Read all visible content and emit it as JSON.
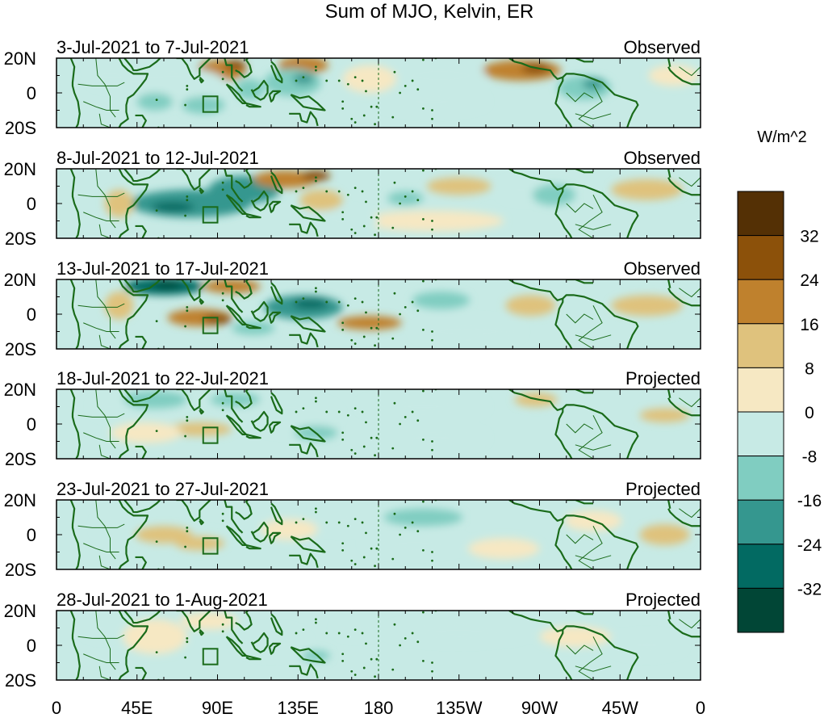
{
  "chart_data": {
    "type": "heatmap",
    "title": "Sum of MJO, Kelvin, ER",
    "colorbar": {
      "label": "W/m^2",
      "tick_labels": [
        "32",
        "24",
        "16",
        "8",
        "0",
        "-8",
        "-16",
        "-24",
        "-32"
      ],
      "levels": [
        {
          "range": [
            "",
            "-32"
          ],
          "color": "#014636"
        },
        {
          "range": [
            "-32",
            "-24"
          ],
          "color": "#026a62"
        },
        {
          "range": [
            "-24",
            "-16"
          ],
          "color": "#35978f"
        },
        {
          "range": [
            "-16",
            "-8"
          ],
          "color": "#80cdc1"
        },
        {
          "range": [
            "-8",
            "0"
          ],
          "color": "#c7eae5"
        },
        {
          "range": [
            "0",
            "8"
          ],
          "color": "#f6e8c3"
        },
        {
          "range": [
            "8",
            "16"
          ],
          "color": "#dfc27d"
        },
        {
          "range": [
            "16",
            "24"
          ],
          "color": "#bf812d"
        },
        {
          "range": [
            "24",
            "32"
          ],
          "color": "#8c510a"
        },
        {
          "range": [
            "32",
            ""
          ],
          "color": "#543005"
        }
      ]
    },
    "x_tick_labels": [
      "0",
      "45E",
      "90E",
      "135E",
      "180",
      "135W",
      "90W",
      "45W",
      "0"
    ],
    "y_tick_labels": [
      "20N",
      "0",
      "20S"
    ],
    "xlim": [
      0,
      360
    ],
    "ylim": [
      -20,
      20
    ],
    "dateline_lon": 180,
    "panels": [
      {
        "period": "3-Jul-2021 to 7-Jul-2021",
        "status": "Observed",
        "blobs": [
          {
            "lon": 92,
            "lat": 13,
            "value": 18,
            "rx": 14,
            "ry": 6
          },
          {
            "lon": 100,
            "lat": 16,
            "value": 26,
            "rx": 6,
            "ry": 3
          },
          {
            "lon": 138,
            "lat": 16,
            "value": 18,
            "rx": 14,
            "ry": 5
          },
          {
            "lon": 132,
            "lat": 6,
            "value": -16,
            "rx": 16,
            "ry": 8
          },
          {
            "lon": 138,
            "lat": 8,
            "value": -24,
            "rx": 6,
            "ry": 3
          },
          {
            "lon": 108,
            "lat": 2,
            "value": -16,
            "rx": 8,
            "ry": 6
          },
          {
            "lon": 65,
            "lat": 5,
            "value": -8,
            "rx": 30,
            "ry": 10
          },
          {
            "lon": 55,
            "lat": -5,
            "value": -16,
            "rx": 10,
            "ry": 5
          },
          {
            "lon": 82,
            "lat": -7,
            "value": -16,
            "rx": 12,
            "ry": 5
          },
          {
            "lon": 260,
            "lat": 13,
            "value": 22,
            "rx": 22,
            "ry": 6
          },
          {
            "lon": 268,
            "lat": 14,
            "value": 30,
            "rx": 8,
            "ry": 3
          },
          {
            "lon": 295,
            "lat": 3,
            "value": -16,
            "rx": 15,
            "ry": 7
          },
          {
            "lon": 300,
            "lat": 5,
            "value": -24,
            "rx": 6,
            "ry": 3
          },
          {
            "lon": 175,
            "lat": 8,
            "value": 6,
            "rx": 15,
            "ry": 8
          },
          {
            "lon": 215,
            "lat": 10,
            "value": -8,
            "rx": 25,
            "ry": 8
          },
          {
            "lon": 210,
            "lat": -5,
            "value": -8,
            "rx": 30,
            "ry": 6
          },
          {
            "lon": 345,
            "lat": 10,
            "value": 6,
            "rx": 14,
            "ry": 6
          },
          {
            "lon": 30,
            "lat": 10,
            "value": -6,
            "rx": 12,
            "ry": 7
          }
        ]
      },
      {
        "period": "8-Jul-2021 to 12-Jul-2021",
        "status": "Observed",
        "blobs": [
          {
            "lon": 75,
            "lat": 0,
            "value": -24,
            "rx": 34,
            "ry": 8
          },
          {
            "lon": 65,
            "lat": -2,
            "value": -30,
            "rx": 12,
            "ry": 3
          },
          {
            "lon": 105,
            "lat": 8,
            "value": -18,
            "rx": 20,
            "ry": 8
          },
          {
            "lon": 128,
            "lat": 14,
            "value": 20,
            "rx": 18,
            "ry": 5
          },
          {
            "lon": 145,
            "lat": 16,
            "value": 28,
            "rx": 8,
            "ry": 3
          },
          {
            "lon": 148,
            "lat": 2,
            "value": 8,
            "rx": 12,
            "ry": 6
          },
          {
            "lon": 35,
            "lat": 0,
            "value": 12,
            "rx": 8,
            "ry": 8
          },
          {
            "lon": 195,
            "lat": 3,
            "value": -10,
            "rx": 10,
            "ry": 4
          },
          {
            "lon": 225,
            "lat": 10,
            "value": 10,
            "rx": 18,
            "ry": 5
          },
          {
            "lon": 260,
            "lat": 8,
            "value": -8,
            "rx": 12,
            "ry": 6
          },
          {
            "lon": 278,
            "lat": 5,
            "value": -16,
            "rx": 12,
            "ry": 6
          },
          {
            "lon": 330,
            "lat": 8,
            "value": 12,
            "rx": 20,
            "ry": 6
          },
          {
            "lon": 210,
            "lat": -10,
            "value": 6,
            "rx": 40,
            "ry": 6
          },
          {
            "lon": 160,
            "lat": -10,
            "value": -6,
            "rx": 20,
            "ry": 6
          }
        ]
      },
      {
        "period": "13-Jul-2021 to 17-Jul-2021",
        "status": "Observed",
        "blobs": [
          {
            "lon": 60,
            "lat": 16,
            "value": -26,
            "rx": 22,
            "ry": 5
          },
          {
            "lon": 62,
            "lat": 17,
            "value": -34,
            "rx": 8,
            "ry": 2
          },
          {
            "lon": 98,
            "lat": 16,
            "value": 20,
            "rx": 16,
            "ry": 4
          },
          {
            "lon": 80,
            "lat": -2,
            "value": 22,
            "rx": 18,
            "ry": 5
          },
          {
            "lon": 90,
            "lat": -3,
            "value": 30,
            "rx": 8,
            "ry": 3
          },
          {
            "lon": 138,
            "lat": 4,
            "value": -22,
            "rx": 22,
            "ry": 7
          },
          {
            "lon": 142,
            "lat": 6,
            "value": -30,
            "rx": 10,
            "ry": 3
          },
          {
            "lon": 175,
            "lat": -5,
            "value": 18,
            "rx": 18,
            "ry": 4
          },
          {
            "lon": 110,
            "lat": -8,
            "value": -16,
            "rx": 12,
            "ry": 4
          },
          {
            "lon": 215,
            "lat": 8,
            "value": -16,
            "rx": 16,
            "ry": 5
          },
          {
            "lon": 330,
            "lat": 5,
            "value": 10,
            "rx": 20,
            "ry": 6
          },
          {
            "lon": 265,
            "lat": 5,
            "value": 8,
            "rx": 14,
            "ry": 6
          },
          {
            "lon": 35,
            "lat": 5,
            "value": 12,
            "rx": 8,
            "ry": 8
          },
          {
            "lon": 230,
            "lat": -10,
            "value": -6,
            "rx": 30,
            "ry": 7
          }
        ]
      },
      {
        "period": "18-Jul-2021 to 22-Jul-2021",
        "status": "Projected",
        "blobs": [
          {
            "lon": 55,
            "lat": 14,
            "value": -16,
            "rx": 18,
            "ry": 5
          },
          {
            "lon": 80,
            "lat": -3,
            "value": 12,
            "rx": 18,
            "ry": 4
          },
          {
            "lon": 50,
            "lat": -5,
            "value": 6,
            "rx": 20,
            "ry": 6
          },
          {
            "lon": 130,
            "lat": 5,
            "value": -8,
            "rx": 28,
            "ry": 10
          },
          {
            "lon": 145,
            "lat": -5,
            "value": -12,
            "rx": 12,
            "ry": 4
          },
          {
            "lon": 100,
            "lat": 14,
            "value": -12,
            "rx": 14,
            "ry": 4
          },
          {
            "lon": 205,
            "lat": 10,
            "value": -8,
            "rx": 35,
            "ry": 6
          },
          {
            "lon": 210,
            "lat": -8,
            "value": -6,
            "rx": 30,
            "ry": 6
          },
          {
            "lon": 268,
            "lat": 14,
            "value": 10,
            "rx": 12,
            "ry": 4
          },
          {
            "lon": 340,
            "lat": 5,
            "value": 10,
            "rx": 14,
            "ry": 4
          },
          {
            "lon": 30,
            "lat": 10,
            "value": -6,
            "rx": 10,
            "ry": 6
          }
        ]
      },
      {
        "period": "23-Jul-2021 to 27-Jul-2021",
        "status": "Projected",
        "blobs": [
          {
            "lon": 60,
            "lat": 0,
            "value": 10,
            "rx": 16,
            "ry": 5
          },
          {
            "lon": 80,
            "lat": -5,
            "value": 14,
            "rx": 14,
            "ry": 4
          },
          {
            "lon": 110,
            "lat": 15,
            "value": -8,
            "rx": 25,
            "ry": 5
          },
          {
            "lon": 130,
            "lat": 3,
            "value": 6,
            "rx": 16,
            "ry": 6
          },
          {
            "lon": 160,
            "lat": 8,
            "value": -6,
            "rx": 16,
            "ry": 6
          },
          {
            "lon": 205,
            "lat": 10,
            "value": -12,
            "rx": 22,
            "ry": 5
          },
          {
            "lon": 200,
            "lat": -5,
            "value": -6,
            "rx": 28,
            "ry": 6
          },
          {
            "lon": 250,
            "lat": -8,
            "value": 5,
            "rx": 20,
            "ry": 6
          },
          {
            "lon": 300,
            "lat": 8,
            "value": 6,
            "rx": 16,
            "ry": 6
          },
          {
            "lon": 340,
            "lat": 0,
            "value": 8,
            "rx": 14,
            "ry": 6
          },
          {
            "lon": 30,
            "lat": 5,
            "value": -8,
            "rx": 8,
            "ry": 8
          }
        ]
      },
      {
        "period": "28-Jul-2021 to 1-Aug-2021",
        "status": "Projected",
        "blobs": [
          {
            "lon": 55,
            "lat": 5,
            "value": 6,
            "rx": 18,
            "ry": 10
          },
          {
            "lon": 85,
            "lat": 14,
            "value": 6,
            "rx": 16,
            "ry": 5
          },
          {
            "lon": 120,
            "lat": 2,
            "value": -8,
            "rx": 20,
            "ry": 8
          },
          {
            "lon": 145,
            "lat": -6,
            "value": -16,
            "rx": 8,
            "ry": 3
          },
          {
            "lon": 168,
            "lat": 10,
            "value": -8,
            "rx": 12,
            "ry": 5
          },
          {
            "lon": 225,
            "lat": 8,
            "value": -6,
            "rx": 40,
            "ry": 6
          },
          {
            "lon": 290,
            "lat": 5,
            "value": 6,
            "rx": 20,
            "ry": 6
          },
          {
            "lon": 330,
            "lat": 0,
            "value": -6,
            "rx": 20,
            "ry": 6
          },
          {
            "lon": 25,
            "lat": 10,
            "value": -6,
            "rx": 10,
            "ry": 6
          }
        ]
      }
    ]
  }
}
